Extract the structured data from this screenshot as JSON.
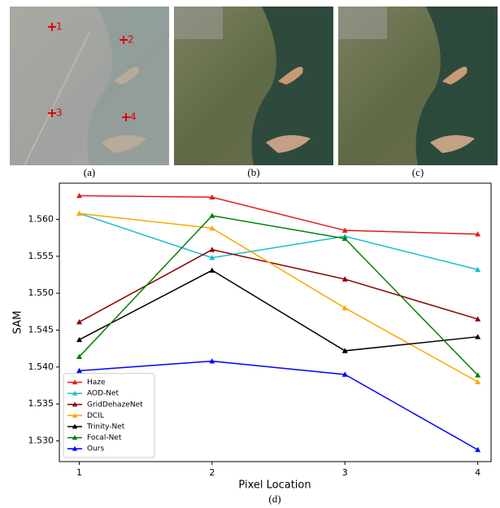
{
  "panels": {
    "labels": [
      "(a)",
      "(b)",
      "(c)"
    ],
    "point_labels": [
      "1",
      "2",
      "3",
      "4"
    ]
  },
  "chart_data": {
    "type": "line",
    "caption": "(d)",
    "xlabel": "Pixel Location",
    "ylabel": "SAM",
    "x": [
      1,
      2,
      3,
      4
    ],
    "xlim": [
      0.85,
      4.1
    ],
    "xticks": [
      1,
      2,
      3,
      4
    ],
    "ylim": [
      1.5272,
      1.5649
    ],
    "yticks": [
      {
        "value": 1.53,
        "label": "1.530"
      },
      1.535,
      {
        "value": 1.54,
        "label": "1.540"
      },
      1.545,
      {
        "value": 1.55,
        "label": "1.550"
      },
      1.555,
      {
        "value": 1.56,
        "label": "1.560"
      }
    ],
    "legend": "lower left",
    "marker": "triangle",
    "series": [
      {
        "name": "Haze",
        "color": "#e41a1c",
        "values": [
          1.5632,
          1.563,
          1.5585,
          1.558
        ]
      },
      {
        "name": "AOD-Net",
        "color": "#17becf",
        "values": [
          1.5608,
          1.5548,
          1.5577,
          1.5532
        ]
      },
      {
        "name": "GridDehazeNet",
        "color": "#8b0000",
        "values": [
          1.5461,
          1.5559,
          1.5519,
          1.5465
        ]
      },
      {
        "name": "DCIL",
        "color": "#ffa500",
        "values": [
          1.5608,
          1.5588,
          1.548,
          1.538
        ]
      },
      {
        "name": "Trinity-Net",
        "color": "#000000",
        "values": [
          1.5437,
          1.5531,
          1.5422,
          1.5441
        ]
      },
      {
        "name": "Focal-Net",
        "color": "#008000",
        "values": [
          1.5414,
          1.5605,
          1.5574,
          1.5389
        ]
      },
      {
        "name": "Ours",
        "color": "#0000ff",
        "values": [
          1.5395,
          1.5408,
          1.539,
          1.5288
        ]
      }
    ]
  }
}
